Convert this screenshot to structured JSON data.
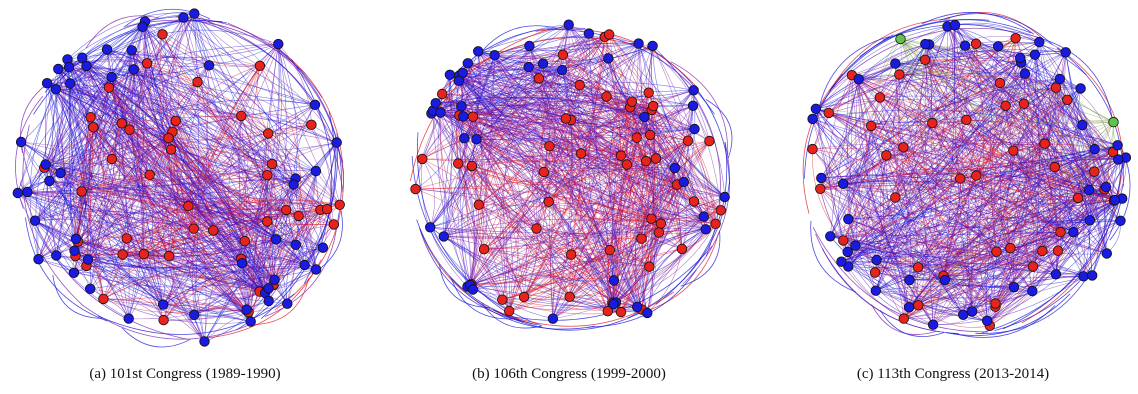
{
  "figure": {
    "panels": [
      {
        "caption": "(a) 101st Congress (1989-1990)",
        "node_colors": [
          "red",
          "blue"
        ],
        "composition": {
          "red": 46,
          "blue": 54,
          "green": 0
        }
      },
      {
        "caption": "(b) 106th Congress (1999-2000)",
        "node_colors": [
          "red",
          "blue"
        ],
        "composition": {
          "red": 56,
          "blue": 44,
          "green": 0
        }
      },
      {
        "caption": "(c) 113th Congress (2013-2014)",
        "node_colors": [
          "red",
          "blue",
          "green"
        ],
        "composition": {
          "red": 45,
          "blue": 53,
          "green": 2
        }
      }
    ],
    "colors": {
      "red": "#e8231e",
      "blue": "#1a1ae0",
      "green": "#5fc24a",
      "edge_red": "#e0101a",
      "edge_blue": "#1010d8",
      "edge_mixed": "#7a1aa8",
      "node_stroke": "#111111"
    }
  }
}
